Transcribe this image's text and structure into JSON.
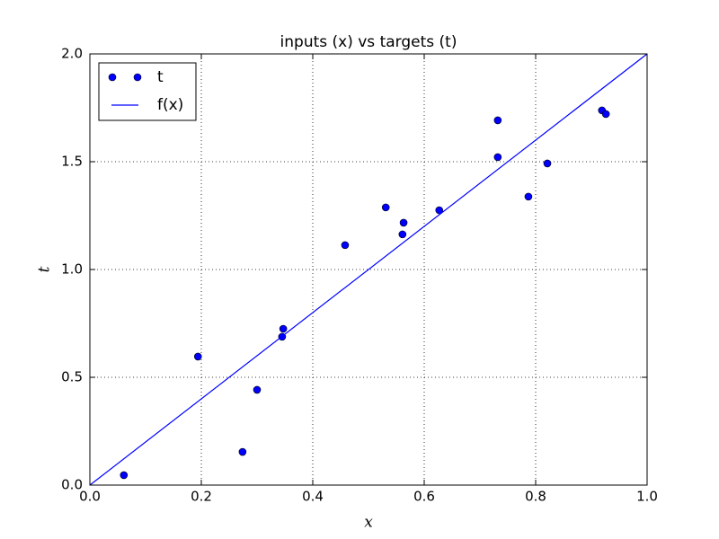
{
  "chart_data": {
    "type": "scatter",
    "title": "inputs (x) vs targets (t)",
    "xlabel": "x",
    "ylabel": "t",
    "series": [
      {
        "name": "t",
        "type": "scatter",
        "color": "#0000ff",
        "x": [
          0.061,
          0.194,
          0.274,
          0.3,
          0.347,
          0.345,
          0.458,
          0.531,
          0.563,
          0.561,
          0.627,
          0.732,
          0.732,
          0.787,
          0.821,
          0.919,
          0.926
        ],
        "values": [
          0.046,
          0.596,
          0.154,
          0.442,
          0.725,
          0.688,
          1.113,
          1.288,
          1.217,
          1.163,
          1.275,
          1.692,
          1.521,
          1.338,
          1.492,
          1.738,
          1.721
        ]
      },
      {
        "name": "f(x)",
        "type": "line",
        "color": "#0000ff",
        "x": [
          0,
          1
        ],
        "values": [
          0,
          2
        ]
      }
    ],
    "xlim": [
      0,
      1
    ],
    "ylim": [
      0,
      2
    ],
    "xticks": [
      {
        "value": 0,
        "label": "0.0"
      },
      0.2,
      0.4,
      0.6,
      0.8,
      {
        "value": 1,
        "label": "1.0"
      }
    ],
    "yticks": [
      {
        "value": 0,
        "label": "0.0"
      },
      0.5,
      {
        "value": 1,
        "label": "1.0"
      },
      1.5,
      {
        "value": 2,
        "label": "2.0"
      }
    ],
    "grid": true,
    "legend": "upper left"
  }
}
